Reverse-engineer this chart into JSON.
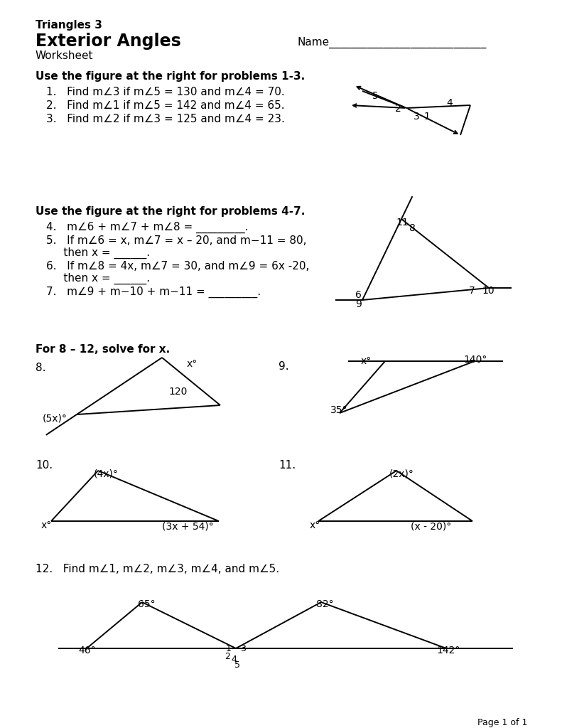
{
  "bg_color": "#ffffff",
  "text_color": "#000000",
  "title1": "Triangles 3",
  "title2": "Exterior Angles",
  "title3": "Worksheet",
  "name_line": "Name_____________________________",
  "sec1_header": "Use the figure at the right for problems 1-3.",
  "sec4_header": "Use the figure at the right for problems 4-7.",
  "sec8_header": "For 8 – 12, solve for x.",
  "p1": "1.   Find m∠3 if m∠5 = 130 and m∠4 = 70.",
  "p2": "2.   Find m∠1 if m∠5 = 142 and m∠4 = 65.",
  "p3": "3.   Find m∠2 if m∠3 = 125 and m∠4 = 23.",
  "p4": "4.   m∠6 + m∠7 + m∠8 = _________.",
  "p5a": "5.   If m∠6 = x, m∠7 = x – 20, and m−11 = 80,",
  "p5b": "     then x = ______.",
  "p6a": "6.   If m∠8 = 4x, m∠7 = 30, and m∠9 = 6x -20,",
  "p6b": "     then x = ______.",
  "p7": "7.   m∠9 + m−10 + m−11 = _________.",
  "footer": "Page 1 of 1"
}
